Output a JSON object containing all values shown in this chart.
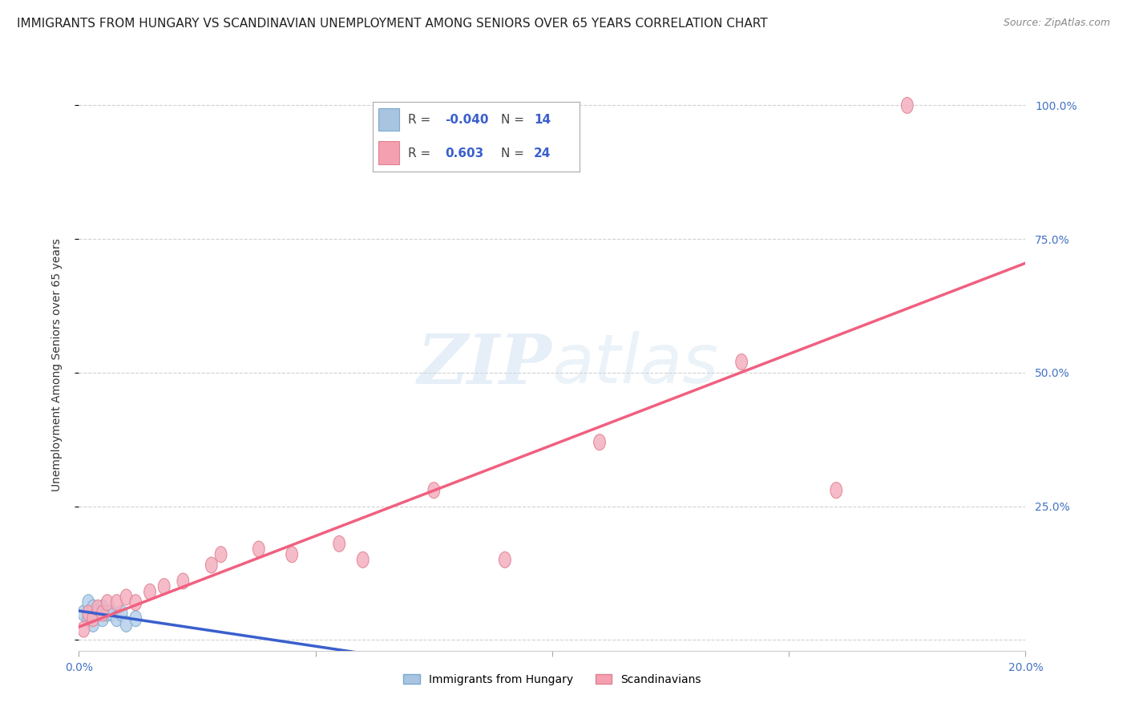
{
  "title": "IMMIGRANTS FROM HUNGARY VS SCANDINAVIAN UNEMPLOYMENT AMONG SENIORS OVER 65 YEARS CORRELATION CHART",
  "source": "Source: ZipAtlas.com",
  "ylabel": "Unemployment Among Seniors over 65 years",
  "watermark_zip": "ZIP",
  "watermark_atlas": "atlas",
  "xlim": [
    0.0,
    0.2
  ],
  "ylim": [
    -0.02,
    1.05
  ],
  "x_ticks": [
    0.0,
    0.05,
    0.1,
    0.15,
    0.2
  ],
  "x_tick_labels": [
    "0.0%",
    "",
    "",
    "",
    "20.0%"
  ],
  "y_ticks": [
    0.0,
    0.25,
    0.5,
    0.75,
    1.0
  ],
  "y_tick_labels_right": [
    "",
    "25.0%",
    "50.0%",
    "75.0%",
    "100.0%"
  ],
  "hungary_x": [
    0.001,
    0.002,
    0.002,
    0.003,
    0.003,
    0.004,
    0.005,
    0.005,
    0.006,
    0.007,
    0.008,
    0.009,
    0.01,
    0.012
  ],
  "hungary_y": [
    0.05,
    0.07,
    0.04,
    0.06,
    0.03,
    0.05,
    0.06,
    0.04,
    0.05,
    0.05,
    0.04,
    0.05,
    0.03,
    0.04
  ],
  "scandinavia_x": [
    0.001,
    0.002,
    0.003,
    0.004,
    0.005,
    0.006,
    0.008,
    0.01,
    0.012,
    0.015,
    0.018,
    0.022,
    0.028,
    0.03,
    0.038,
    0.045,
    0.055,
    0.06,
    0.075,
    0.09,
    0.11,
    0.14,
    0.16,
    0.175
  ],
  "scandinavia_y": [
    0.02,
    0.05,
    0.04,
    0.06,
    0.05,
    0.07,
    0.07,
    0.08,
    0.07,
    0.09,
    0.1,
    0.11,
    0.14,
    0.16,
    0.17,
    0.16,
    0.18,
    0.15,
    0.28,
    0.15,
    0.37,
    0.52,
    0.28,
    1.0
  ],
  "hungary_line_color": "#3a5fcd",
  "scandinavia_line_color": "#f06080",
  "hungary_marker_facecolor": "#b8d0ea",
  "hungary_marker_edgecolor": "#7aaad0",
  "scandinavia_marker_facecolor": "#f4b0c0",
  "scandinavia_marker_edgecolor": "#e08090",
  "background_color": "#ffffff",
  "grid_color": "#cccccc",
  "title_fontsize": 11,
  "axis_label_fontsize": 10,
  "tick_fontsize": 10,
  "legend_R1": "-0.040",
  "legend_N1": "14",
  "legend_R2": "0.603",
  "legend_N2": "24",
  "legend_color1": "#a8c4e0",
  "legend_color2": "#f4a0b0",
  "legend_label1": "Immigrants from Hungary",
  "legend_label2": "Scandinavians"
}
